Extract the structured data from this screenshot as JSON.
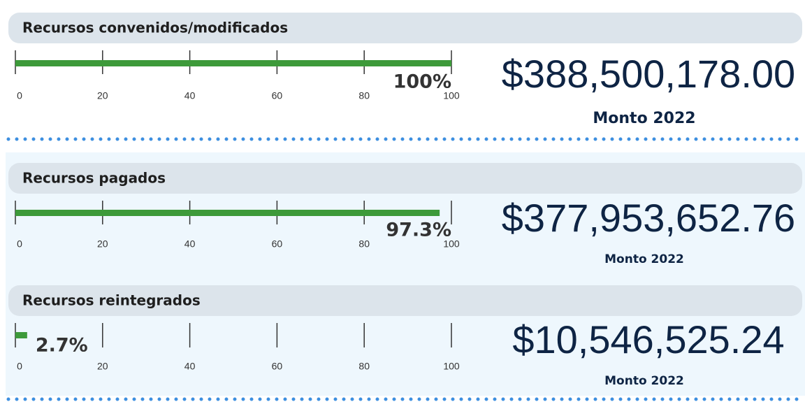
{
  "panels": [
    {
      "title": "Recursos convenidos/modificados",
      "value": 100,
      "value_label": "100%",
      "xlim": [
        0,
        100
      ],
      "ticks": [
        0,
        20,
        40,
        60,
        80,
        100
      ],
      "color": "#3d9a3a",
      "amount": "$388,500,178.00",
      "caption": "Monto 2022"
    },
    {
      "title": "Recursos pagados",
      "value": 97.3,
      "value_label": "97.3%",
      "xlim": [
        0,
        100
      ],
      "ticks": [
        0,
        20,
        40,
        60,
        80,
        100
      ],
      "color": "#3d9a3a",
      "amount": "$377,953,652.76",
      "caption": "Monto 2022"
    },
    {
      "title": "Recursos reintegrados",
      "value": 2.7,
      "value_label": "2.7%",
      "xlim": [
        0,
        100
      ],
      "ticks": [
        0,
        20,
        40,
        60,
        80,
        100
      ],
      "color": "#3d9a3a",
      "amount": "$10,546,525.24",
      "caption": "Monto 2022"
    }
  ]
}
